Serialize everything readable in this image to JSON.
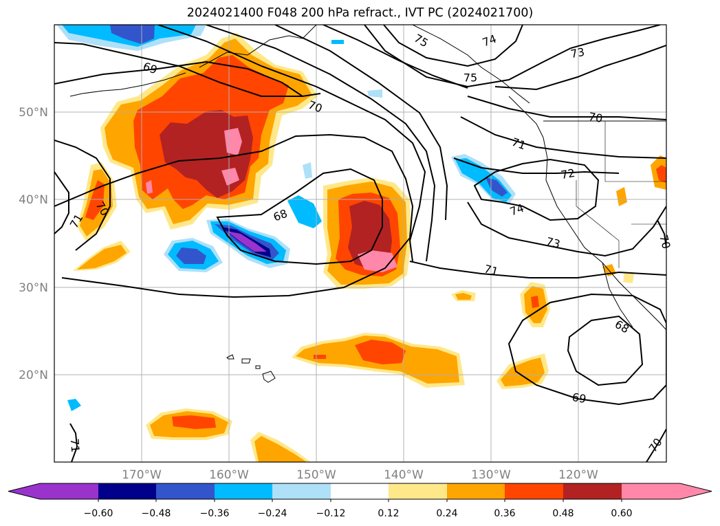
{
  "title": "2024021400 F048 200 hPa refract., IVT PC (2024021700)",
  "map": {
    "lat_ticks": [
      "50°N",
      "40°N",
      "30°N",
      "20°N"
    ],
    "lon_ticks": [
      "170°W",
      "160°W",
      "150°W",
      "140°W",
      "130°W",
      "120°W"
    ],
    "contour_levels": [
      "68",
      "69",
      "70",
      "71",
      "72",
      "73",
      "74",
      "75"
    ]
  },
  "colorbar": {
    "ticks": [
      "−0.60",
      "−0.48",
      "−0.36",
      "−0.24",
      "−0.12",
      "0.12",
      "0.24",
      "0.36",
      "0.48",
      "0.60"
    ],
    "colors": [
      "#9933cc",
      "#00008b",
      "#3355cc",
      "#00bbff",
      "#aee0f8",
      "#ffffff",
      "#ffe88a",
      "#ffa500",
      "#ff4500",
      "#b22222",
      "#ff88aa"
    ]
  },
  "contour_labels": [
    {
      "text": "75"
    },
    {
      "text": "74"
    },
    {
      "text": "73"
    },
    {
      "text": "75"
    },
    {
      "text": "69"
    },
    {
      "text": "70"
    },
    {
      "text": "70"
    },
    {
      "text": "71"
    },
    {
      "text": "72"
    },
    {
      "text": "74"
    },
    {
      "text": "73"
    },
    {
      "text": "71"
    },
    {
      "text": "68"
    },
    {
      "text": "68"
    },
    {
      "text": "69"
    },
    {
      "text": "70"
    },
    {
      "text": "71"
    },
    {
      "text": "70"
    },
    {
      "text": "71"
    },
    {
      "text": "70"
    }
  ]
}
